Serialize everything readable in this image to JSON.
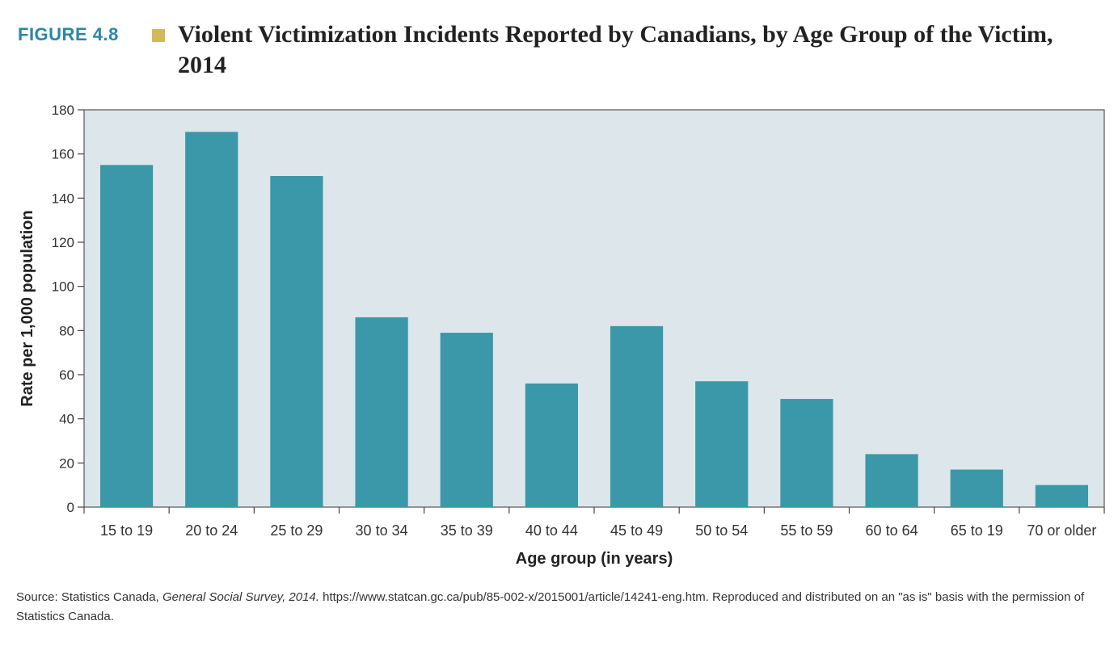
{
  "figure": {
    "label": "FIGURE 4.8",
    "title": "Violent Victimization Incidents Reported by Canadians, by Age Group of the Victim, 2014",
    "accent_color": "#2a86a6",
    "square_color": "#d4b85a"
  },
  "source": {
    "prefix": "Source: Statistics Canada, ",
    "italic": "General Social Survey, 2014.",
    "suffix": " https://www.statcan.gc.ca/pub/85-002-x/2015001/article/14241-eng.htm. Reproduced and distributed on an \"as is\" basis with the permission of Statistics Canada."
  },
  "chart_data": {
    "type": "bar",
    "categories": [
      "15 to 19",
      "20 to 24",
      "25 to 29",
      "30 to 34",
      "35 to 39",
      "40 to 44",
      "45 to 49",
      "50 to 54",
      "55 to 59",
      "60 to 64",
      "65 to 19",
      "70 or older"
    ],
    "values": [
      155,
      170,
      150,
      86,
      79,
      56,
      82,
      57,
      49,
      24,
      17,
      10
    ],
    "xlabel": "Age group (in years)",
    "ylabel": "Rate per 1,000 population",
    "ylim": [
      0,
      180
    ],
    "yticks": [
      0,
      20,
      40,
      60,
      80,
      100,
      120,
      140,
      160,
      180
    ],
    "bar_color": "#3a98a8",
    "plot_background": "#dde6ea",
    "grid": false
  }
}
